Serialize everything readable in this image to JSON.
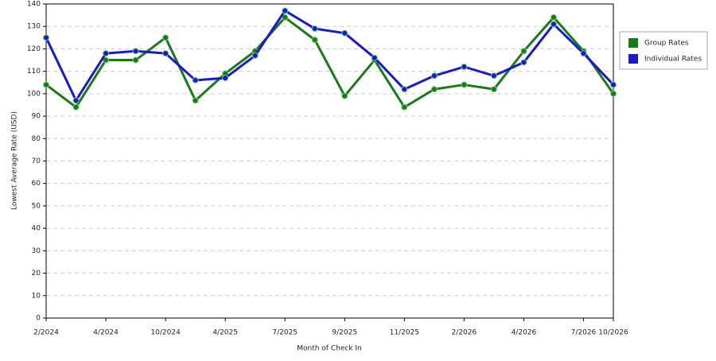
{
  "chart_data": {
    "type": "line",
    "x_label": "Month of Check In",
    "y_label": "Lowest Average Rate (USD)",
    "categories": [
      "2/2024",
      null,
      "4/2024",
      null,
      "10/2024",
      null,
      "4/2025",
      null,
      "7/2025",
      null,
      "9/2025",
      null,
      "11/2025",
      null,
      "2/2026",
      null,
      "4/2026",
      null,
      "7/2026",
      "10/2026"
    ],
    "series": [
      {
        "name": "Group Rates",
        "color": "#1a7a1a",
        "values": [
          104,
          94,
          115,
          115,
          125,
          97,
          109,
          119,
          134,
          124,
          99,
          115,
          94,
          102,
          104,
          102,
          119,
          134,
          119,
          100
        ]
      },
      {
        "name": "Individual Rates",
        "color": "#1a1acc",
        "values": [
          125,
          97,
          118,
          119,
          118,
          106,
          107,
          117,
          137,
          129,
          127,
          116,
          102,
          108,
          112,
          108,
          114,
          131,
          118,
          104
        ]
      }
    ],
    "ylim": [
      0,
      140
    ],
    "yticks": [
      0,
      10,
      20,
      30,
      40,
      50,
      60,
      70,
      80,
      90,
      100,
      110,
      120,
      130,
      140
    ],
    "grid": true,
    "legend": "right"
  }
}
